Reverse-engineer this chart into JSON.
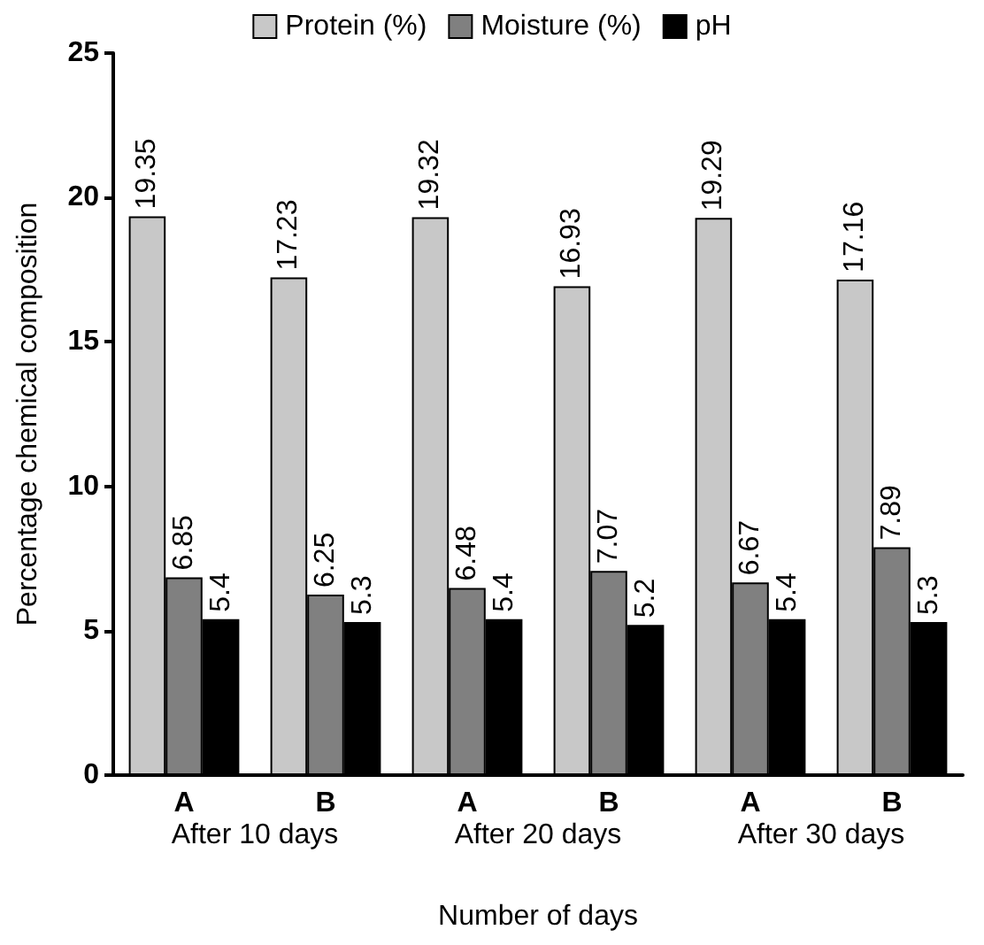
{
  "chart_data": {
    "type": "bar",
    "xlabel": "Number of days",
    "ylabel": "Percentage chemical composition",
    "categories": [
      "A",
      "B",
      "A",
      "B",
      "A",
      "B"
    ],
    "series": [
      {
        "name": "Protein (%)",
        "color": "#c8c8c8",
        "values": [
          19.35,
          17.23,
          19.32,
          16.93,
          19.29,
          17.16
        ]
      },
      {
        "name": "Moisture (%)",
        "color": "#808080",
        "values": [
          6.85,
          6.25,
          6.48,
          7.07,
          6.67,
          7.89
        ]
      },
      {
        "name": "pH",
        "color": "#000000",
        "values": [
          5.4,
          5.3,
          5.4,
          5.2,
          5.4,
          5.3
        ]
      }
    ],
    "ylim": [
      0,
      25
    ],
    "yticks": [
      0,
      5,
      10,
      15,
      20,
      25
    ],
    "data_labels": true,
    "legend": "top",
    "grid": false,
    "annotations": [
      "After 10 days",
      "After 20 days",
      "After 30 days"
    ]
  }
}
